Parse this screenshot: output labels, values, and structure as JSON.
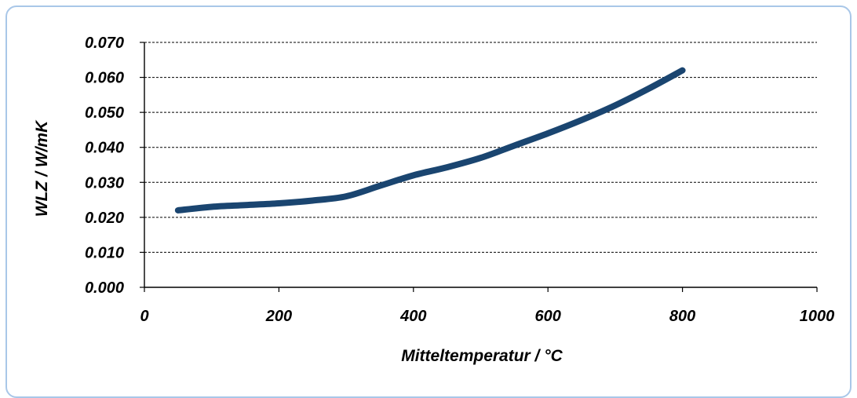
{
  "chart_data": {
    "type": "line",
    "title": "",
    "xlabel": "Mitteltemperatur / °C",
    "ylabel": "WLZ / W/mK",
    "xlim": [
      0,
      1000
    ],
    "ylim": [
      0,
      0.07
    ],
    "x_ticks": [
      "0",
      "200",
      "400",
      "600",
      "800",
      "1000"
    ],
    "y_ticks": [
      "0.000",
      "0.010",
      "0.020",
      "0.030",
      "0.040",
      "0.050",
      "0.060",
      "0.070"
    ],
    "grid": "horizontal dashed",
    "legend": "none",
    "series": [
      {
        "color": "#1a4570",
        "x": [
          50,
          100,
          150,
          200,
          250,
          300,
          350,
          400,
          450,
          500,
          550,
          600,
          650,
          700,
          750,
          800
        ],
        "y": [
          0.022,
          0.023,
          0.0235,
          0.024,
          0.0248,
          0.026,
          0.029,
          0.032,
          0.0343,
          0.037,
          0.0405,
          0.044,
          0.0478,
          0.052,
          0.0568,
          0.062
        ]
      }
    ]
  }
}
